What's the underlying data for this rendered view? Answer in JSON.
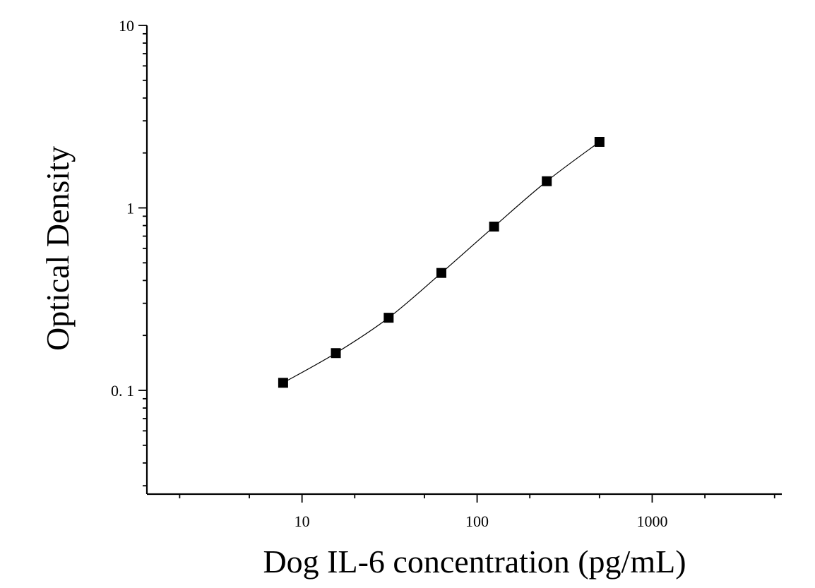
{
  "chart_data": {
    "type": "scatter",
    "title": "",
    "xlabel": "Dog IL-6 concentration (pg/mL)",
    "ylabel": "Optical Density",
    "x_scale": "log",
    "y_scale": "log",
    "xlim": [
      1.3,
      5500
    ],
    "ylim": [
      0.027,
      10
    ],
    "x_tick_labels": [
      {
        "value": 10,
        "label": "10"
      },
      {
        "value": 100,
        "label": "100"
      },
      {
        "value": 1000,
        "label": "1000"
      }
    ],
    "y_tick_labels": [
      {
        "value": 0.1,
        "label": "0. 1"
      },
      {
        "value": 1,
        "label": "1"
      },
      {
        "value": 10,
        "label": "10"
      }
    ],
    "grid": false,
    "legend": "none",
    "fit_line": true,
    "marker": "square",
    "color": "#000000",
    "series": [
      {
        "x": [
          7.8,
          15.6,
          31.25,
          62.5,
          125,
          250,
          500
        ],
        "y": [
          0.11,
          0.16,
          0.25,
          0.44,
          0.79,
          1.4,
          2.3
        ]
      }
    ]
  }
}
